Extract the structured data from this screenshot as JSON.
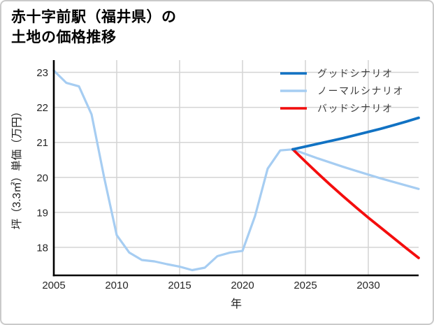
{
  "title": {
    "line1": "赤十字前駅（福井県）の",
    "line2": "土地の価格推移"
  },
  "colors": {
    "card_border": "#cacaca",
    "grid": "#d4d4d4",
    "axis": "#000000",
    "tick_label": "#262626",
    "axis_label": "#1a1a1a",
    "legend_text": "#3d3d3d",
    "good_blue": "#1172c3",
    "normal_light_blue": "#a6cdf2",
    "bad_red": "#f40d0d"
  },
  "chart_data": {
    "type": "line",
    "title": "赤十字前駅（福井県）の土地の価格推移",
    "xlabel": "年",
    "ylabel": "坪（3.3㎡）単価（万円）",
    "xlim": [
      2005,
      2034
    ],
    "ylim": [
      17.2,
      23.35
    ],
    "x_ticks": [
      "2005",
      "2010",
      "2015",
      "2020",
      "2025",
      "2030"
    ],
    "x_tick_values": [
      2005,
      2010,
      2015,
      2020,
      2025,
      2030
    ],
    "y_ticks": [
      "18",
      "19",
      "20",
      "21",
      "22",
      "23"
    ],
    "y_tick_values": [
      18,
      19,
      20,
      21,
      22,
      23
    ],
    "grid": true,
    "legend_position": "upper-right",
    "historical": {
      "color": "#a6cdf2",
      "x": [
        2005,
        2006,
        2007,
        2008,
        2009,
        2010,
        2011,
        2012,
        2013,
        2014,
        2015,
        2016,
        2017,
        2018,
        2019,
        2020,
        2021,
        2022,
        2023,
        2024
      ],
      "values": [
        23.05,
        22.7,
        22.6,
        21.8,
        20.0,
        18.35,
        17.85,
        17.64,
        17.6,
        17.52,
        17.45,
        17.35,
        17.42,
        17.75,
        17.85,
        17.9,
        18.9,
        20.25,
        20.77,
        20.8
      ]
    },
    "scenarios": [
      {
        "label": "グッドシナリオ",
        "color": "#1172c3",
        "x": [
          2024,
          2025,
          2026,
          2027,
          2028,
          2029,
          2030,
          2031,
          2032,
          2033,
          2034
        ],
        "values": [
          20.8,
          20.88,
          20.96,
          21.04,
          21.12,
          21.21,
          21.3,
          21.39,
          21.49,
          21.59,
          21.7
        ]
      },
      {
        "label": "ノーマルシナリオ",
        "color": "#a6cdf2",
        "x": [
          2024,
          2025,
          2026,
          2027,
          2028,
          2029,
          2030,
          2031,
          2032,
          2033,
          2034
        ],
        "values": [
          20.8,
          20.67,
          20.54,
          20.42,
          20.3,
          20.19,
          20.08,
          19.97,
          19.87,
          19.77,
          19.67
        ]
      },
      {
        "label": "バッドシナリオ",
        "color": "#f40d0d",
        "x": [
          2024,
          2025,
          2026,
          2027,
          2028,
          2029,
          2030,
          2031,
          2032,
          2033,
          2034
        ],
        "values": [
          20.8,
          20.45,
          20.11,
          19.78,
          19.46,
          19.15,
          18.85,
          18.56,
          18.27,
          17.98,
          17.7
        ]
      }
    ]
  }
}
